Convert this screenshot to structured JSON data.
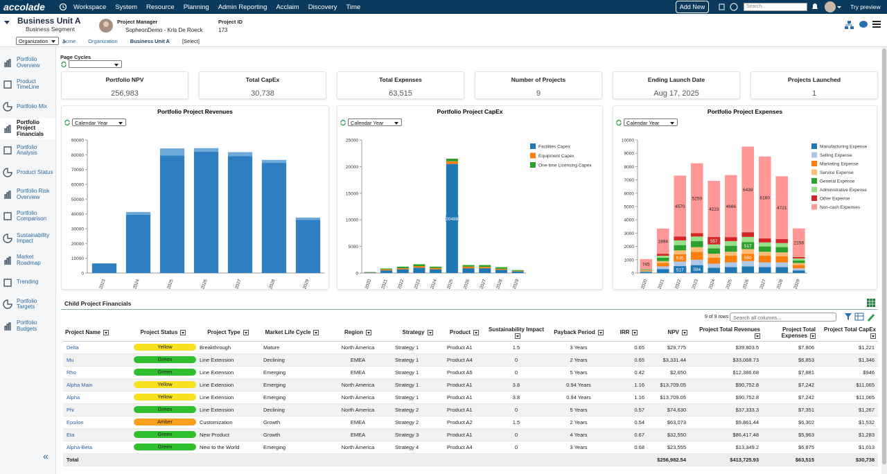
{
  "nav": {
    "logo": "accolade",
    "menu": [
      "Workspace",
      "System",
      "Resource",
      "Planning",
      "Admin Reporting",
      "Acclaim",
      "Discovery",
      "Time"
    ],
    "add_new": "Add New",
    "search_placeholder": "Search...",
    "try_preview": "Try preview"
  },
  "header": {
    "title": "Business Unit A",
    "subtitle": "Business Segment",
    "manager_label": "Project Manager",
    "manager": "SopheonDemo - Kris De Roeck",
    "project_id_label": "Project ID",
    "project_id": "173"
  },
  "breadcrumb": {
    "selector": "Organization",
    "items": [
      "Acme",
      "Organization",
      "Business Unit A",
      "[Select]"
    ]
  },
  "sidebar": {
    "items": [
      "Portfolio Overview",
      "Product TimeLine",
      "Portfolio Mix",
      "Portfolio Project Financials",
      "Portfolio Analysis",
      "Product Status",
      "Portfolio Risk Overview",
      "Portfolio Comparison",
      "Sustainability Impact",
      "Market Roadmap",
      "Trending",
      "Portfolio Targets",
      "Portfolio Budgets"
    ],
    "active": 3
  },
  "page_cycles_label": "Page Cycles",
  "kpis": [
    {
      "label": "Portfolio NPV",
      "value": "256,983"
    },
    {
      "label": "Total CapEx",
      "value": "30,738"
    },
    {
      "label": "Total Expenses",
      "value": "63,515"
    },
    {
      "label": "Number of Projects",
      "value": "9"
    },
    {
      "label": "Ending Launch Date",
      "value": "Aug 17, 2025"
    },
    {
      "label": "Projects Launched",
      "value": "1"
    }
  ],
  "chart_data": [
    {
      "type": "bar",
      "stacked": true,
      "title": "Portfolio Project Revenues",
      "period": "Calendar Year",
      "categories": [
        "2023",
        "2024",
        "2025",
        "2026",
        "2027",
        "2028",
        "2029"
      ],
      "series": [
        {
          "color": "#2f7ebf",
          "values": [
            6500,
            39500,
            79500,
            82000,
            79000,
            74500,
            36000
          ]
        },
        {
          "color": "#6ea9d9",
          "values": [
            0,
            1800,
            4800,
            2500,
            2800,
            2000,
            1500
          ]
        }
      ],
      "ylim": [
        0,
        90000
      ],
      "yticks": [
        0,
        10000,
        20000,
        30000,
        40000,
        50000,
        60000,
        70000,
        80000,
        90000
      ]
    },
    {
      "type": "bar",
      "stacked": true,
      "title": "Portfolio Project CapEx",
      "period": "Calendar Year",
      "categories": [
        "2020",
        "2021",
        "2022",
        "2023",
        "2024",
        "2025",
        "2026",
        "2027",
        "2028",
        "2029"
      ],
      "series": [
        {
          "name": "Facilities Capex",
          "color": "#1f77b4",
          "values": [
            100,
            500,
            700,
            1000,
            700,
            20488,
            900,
            900,
            600,
            300
          ],
          "value_labels": [
            null,
            null,
            null,
            null,
            null,
            "20488",
            null,
            null,
            null,
            null
          ]
        },
        {
          "name": "Equipment Capex",
          "color": "#ff7f0e",
          "values": [
            50,
            200,
            200,
            300,
            250,
            500,
            300,
            250,
            200,
            100
          ]
        },
        {
          "name": "One-time Licensing Capex",
          "color": "#2ca02c",
          "values": [
            50,
            150,
            300,
            350,
            250,
            500,
            300,
            350,
            300,
            150
          ]
        }
      ],
      "ylim": [
        0,
        25000
      ],
      "yticks": [
        0,
        5000,
        10000,
        15000,
        20000,
        25000
      ]
    },
    {
      "type": "bar",
      "stacked": true,
      "title": "Portfolio Project Expenses",
      "period": "Calendar Year",
      "categories": [
        "2020",
        "2021",
        "2022",
        "2023",
        "2024",
        "2025",
        "2026",
        "2027",
        "2028",
        "2029"
      ],
      "series": [
        {
          "name": "Manufacturing Expense",
          "color": "#1f77b4",
          "values": [
            80,
            300,
            517,
            594,
            400,
            450,
            500,
            450,
            450,
            200
          ],
          "value_labels": [
            null,
            null,
            "517",
            "594",
            null,
            null,
            null,
            null,
            null,
            null
          ]
        },
        {
          "name": "Selling Expense",
          "color": "#aec7e8",
          "values": [
            50,
            200,
            350,
            400,
            300,
            350,
            400,
            350,
            350,
            150
          ]
        },
        {
          "name": "Marketing Expense",
          "color": "#ff7f0e",
          "values": [
            60,
            250,
            535,
            600,
            450,
            500,
            550,
            500,
            450,
            250
          ],
          "value_labels": [
            null,
            null,
            "535",
            null,
            null,
            null,
            "550",
            null,
            null,
            null
          ]
        },
        {
          "name": "Service Expense",
          "color": "#ffbb78",
          "values": [
            40,
            150,
            300,
            350,
            300,
            300,
            350,
            300,
            300,
            150
          ]
        },
        {
          "name": "General Expense",
          "color": "#2ca02c",
          "values": [
            40,
            250,
            400,
            450,
            400,
            450,
            517,
            400,
            400,
            200
          ],
          "value_labels": [
            null,
            null,
            null,
            null,
            null,
            null,
            "517",
            null,
            null,
            null
          ]
        },
        {
          "name": "Administrative Expense",
          "color": "#98df8a",
          "values": [
            20,
            150,
            350,
            350,
            300,
            350,
            400,
            300,
            300,
            150
          ]
        },
        {
          "name": "Other Expense",
          "color": "#d62728",
          "values": [
            15,
            150,
            300,
            250,
            557,
            300,
            350,
            300,
            300,
            100
          ],
          "value_labels": [
            null,
            null,
            null,
            null,
            "557",
            null,
            null,
            null,
            null,
            null
          ]
        },
        {
          "name": "Non-cash Expenses",
          "color": "#ff9896",
          "values": [
            745,
            1894,
            4570,
            5259,
            4223,
            4666,
            6439,
            6160,
            4721,
            2158
          ],
          "value_labels": [
            "745",
            "1894",
            "4570",
            "5259",
            "4223",
            "4666",
            "6439",
            "6160",
            "4721",
            "2158"
          ]
        }
      ],
      "ylim": [
        0,
        10000
      ],
      "yticks": [
        0,
        1000,
        2000,
        3000,
        4000,
        5000,
        6000,
        7000,
        8000,
        9000,
        10000
      ]
    }
  ],
  "table": {
    "title": "Child Project Financials",
    "row_count": "9 of 9 rows",
    "search_placeholder": "Search all columns...",
    "columns": [
      "Project Name",
      "Project Status",
      "Project Type",
      "Market Life Cycle",
      "Region",
      "Strategy",
      "Product",
      "Sustainability Impact",
      "Payback Period",
      "IRR",
      "NPV",
      "Project Total Revenues",
      "Project Total Expenses",
      "Project Total CapEx"
    ],
    "status_colors": {
      "Yellow": "#f7e11e",
      "Green": "#2fbf2f",
      "Amber": "#f8a01c"
    },
    "rows": [
      [
        "Delta",
        "Yellow",
        "Breakthrough",
        "Mature",
        "North America",
        "Strategy 1",
        "Product A1",
        "1.5",
        "3 Years",
        "0.65",
        "$29,775",
        "$39,803.5",
        "$7,806",
        "$1,221"
      ],
      [
        "Mu",
        "Green",
        "Line Extension",
        "Declining",
        "EMEA",
        "Strategy 1",
        "Product A4",
        "0",
        "2 Years",
        "0.65",
        "$3,331.44",
        "$33,068.73",
        "$6,853",
        "$1,346"
      ],
      [
        "Rho",
        "Green",
        "Line Extension",
        "Emerging",
        "EMEA",
        "Strategy 1",
        "Product A5",
        "0",
        "5 Years",
        "0.42",
        "$2,650",
        "$12,386.68",
        "$7,881",
        "$946"
      ],
      [
        "Alpha Main",
        "Yellow",
        "Line Extension",
        "Emerging",
        "North America",
        "Strategy 1",
        "Product A1",
        "3.8",
        "0.94 Years",
        "1.16",
        "$13,709.05",
        "$90,752.8",
        "$7,242",
        "$11,065"
      ],
      [
        "Alpha",
        "Yellow",
        "Line Extension",
        "Emerging",
        "North America",
        "Strategy 1",
        "Product A1",
        "3.8",
        "0.94 Years",
        "1.16",
        "$13,709.05",
        "$90,752.8",
        "$7,242",
        "$11,065"
      ],
      [
        "Phi",
        "Green",
        "Line Extension",
        "Declining",
        "North America",
        "Strategy 2",
        "Product A1",
        "0",
        "5 Years",
        "0.57",
        "$74,630",
        "$37,333.3",
        "$7,351",
        "$1,267"
      ],
      [
        "Epsilon",
        "Amber",
        "Customization",
        "Growth",
        "EMEA",
        "Strategy 2",
        "Product A2",
        "1.5",
        "2 Years",
        "0.54",
        "$63,073",
        "$9,861.44",
        "$6,302",
        "$1,532"
      ],
      [
        "Eta",
        "Green",
        "New Product",
        "Growth",
        "EMEA",
        "Strategy 3",
        "Product A1",
        "0",
        "4 Years",
        "0.67",
        "$32,550",
        "$86,417.48",
        "$5,963",
        "$1,283"
      ],
      [
        "Alpha-Beta",
        "Green",
        "New to the World",
        "Emerging",
        "North America",
        "Strategy 4",
        "Product A4",
        "0",
        "3 Years",
        "0.68",
        "$23,555",
        "$13,349.2",
        "$6,875",
        "$1,013"
      ]
    ],
    "total": [
      "Total",
      null,
      null,
      null,
      null,
      null,
      null,
      null,
      null,
      null,
      "$256,982.54",
      "$413,725.93",
      "$63,515",
      "$30,738"
    ]
  }
}
